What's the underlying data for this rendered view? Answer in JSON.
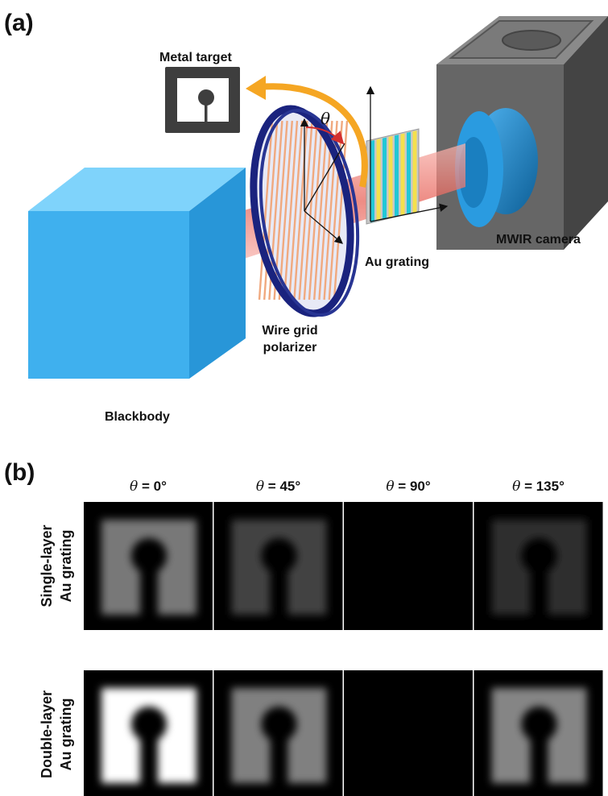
{
  "panel_a": {
    "label": "(a)",
    "metal_target_label": "Metal target",
    "theta_symbol": "θ",
    "wire_grid_label_line1": "Wire grid",
    "wire_grid_label_line2": "polarizer",
    "au_grating_label": "Au grating",
    "camera_label": "MWIR camera",
    "blackbody_label": "Blackbody",
    "colors": {
      "blackbody": "#3fb0ee",
      "polarizer_ring": "#1a237e",
      "beam": "#f28b82",
      "camera_body": "#6b6b6b",
      "camera_lens": "#1e88c8",
      "arrow": "#f5a623",
      "grating_stripe": "#22c7d6",
      "grating_alt": "#f4e04d"
    }
  },
  "panel_b": {
    "label": "(b)",
    "column_headers": [
      {
        "symbol": "θ",
        "value": " = 0°"
      },
      {
        "symbol": "θ",
        "value": " = 45°"
      },
      {
        "symbol": "θ",
        "value": " = 90°"
      },
      {
        "symbol": "θ",
        "value": " = 135°"
      }
    ],
    "rows": [
      {
        "line1": "Single-layer",
        "line2": "Au grating",
        "brightness": [
          0.47,
          0.26,
          0.0,
          0.18
        ]
      },
      {
        "line1": "Double-layer",
        "line2": "Au grating",
        "brightness": [
          1.0,
          0.5,
          0.0,
          0.52
        ]
      }
    ]
  }
}
